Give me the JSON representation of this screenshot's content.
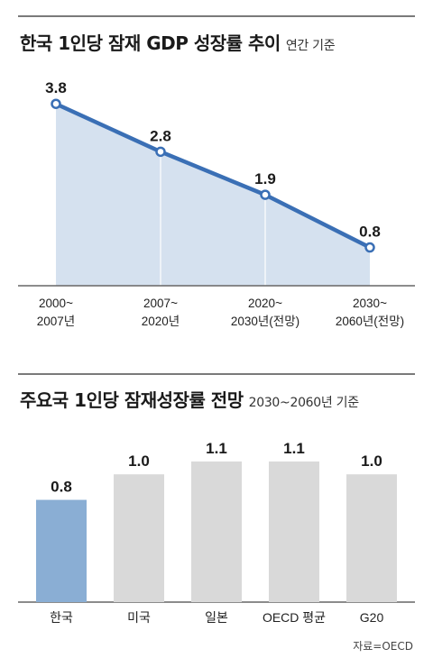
{
  "line_section": {
    "title": "한국 1인당 잠재 GDP 성장률 추이",
    "subtitle": "연간 기준"
  },
  "bar_section": {
    "title": "주요국 1인당 잠재성장률 전망",
    "subtitle": "2030~2060년 기준"
  },
  "source": "자료=OECD",
  "colors": {
    "line": "#3a6fb5",
    "area": "#d5e1ef",
    "bar_highlight": "#8aaed4",
    "bar_default": "#d9d9d9"
  },
  "chart_data": [
    {
      "type": "line",
      "title": "한국 1인당 잠재 GDP 성장률 추이",
      "subtitle": "연간 기준",
      "categories": [
        [
          "2000~",
          "2007년"
        ],
        [
          "2007~",
          "2020년"
        ],
        [
          "2020~",
          "2030년(전망)"
        ],
        [
          "2030~",
          "2060년(전망)"
        ]
      ],
      "values": [
        3.8,
        2.8,
        1.9,
        0.8
      ],
      "ylim": [
        0,
        4.2
      ],
      "grid": false,
      "area_fill": true
    },
    {
      "type": "bar",
      "title": "주요국 1인당 잠재성장률 전망",
      "subtitle": "2030~2060년 기준",
      "categories": [
        "한국",
        "미국",
        "일본",
        "OECD 평균",
        "G20"
      ],
      "values": [
        0.8,
        1.0,
        1.1,
        1.1,
        1.0
      ],
      "value_labels": [
        "0.8",
        "1.0",
        "1.1",
        "1.1",
        "1.0"
      ],
      "highlight": "한국",
      "ylim": [
        0,
        1.34
      ]
    }
  ]
}
